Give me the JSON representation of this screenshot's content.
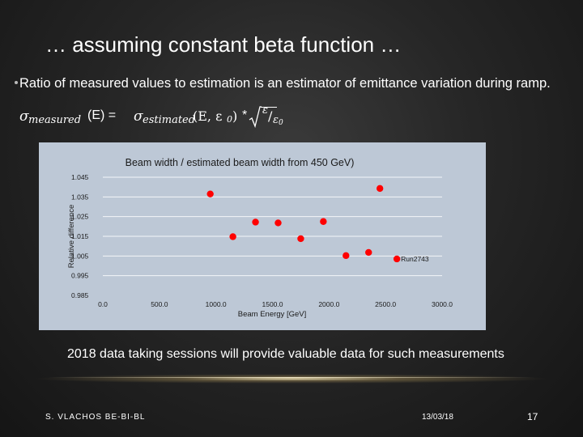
{
  "slide": {
    "title": "… assuming constant beta function …",
    "bullet": "Ratio of measured values to estimation is an estimator of emittance variation during ramp.",
    "formula": {
      "lhs_symbol": "σ",
      "lhs_sub": "measured",
      "lhs_arg": "(E) =",
      "rhs_symbol": "σ",
      "rhs_sub": "estimated",
      "rhs_arg": "(E, ε",
      "rhs_arg_sub": "0",
      "rhs_arg_end": ")",
      "times": "*",
      "sqrt_num": "ε",
      "slash": "/",
      "sqrt_den": "ε",
      "sqrt_den_sub": "0"
    },
    "caption": "2018 data taking sessions will provide valuable data for such measurements",
    "footer": {
      "author": "S. VLACHOS  BE-BI-BL",
      "date": "13/03/18",
      "page": "17"
    },
    "colors": {
      "background": "#262626",
      "chart_background": "#bdc8d6",
      "marker": "#ff0000"
    }
  },
  "chart_data": {
    "type": "scatter",
    "title": "Beam width / estimated beam width from 450 GeV)",
    "xlabel": "Beam Energy [GeV]",
    "ylabel": "Relative difference",
    "xlim": [
      0,
      3000
    ],
    "ylim": [
      0.985,
      1.045
    ],
    "x_tick_labels": [
      "0.0",
      "500.0",
      "1000.0",
      "1500.0",
      "2000.0",
      "2500.0",
      "3000.0"
    ],
    "y_tick_labels": [
      "0.985",
      "0.995",
      "1.005",
      "1.015",
      "1.025",
      "1.035",
      "1.045"
    ],
    "x_ticks": [
      0,
      500,
      1000,
      1500,
      2000,
      2500,
      3000
    ],
    "y_ticks": [
      0.985,
      0.995,
      1.005,
      1.015,
      1.025,
      1.035,
      1.045
    ],
    "grid": "horizontal",
    "series": [
      {
        "x": [
          950,
          1150,
          1350,
          1550,
          1750,
          1950,
          2150,
          2350,
          2450,
          2600
        ],
        "y": [
          1.0365,
          1.0148,
          1.0222,
          1.0218,
          1.0138,
          1.0225,
          1.0052,
          1.0068,
          1.0393,
          1.0035
        ]
      }
    ],
    "annotations": [
      {
        "text": "Run2743",
        "x": 2600,
        "y": 1.0035
      }
    ]
  }
}
